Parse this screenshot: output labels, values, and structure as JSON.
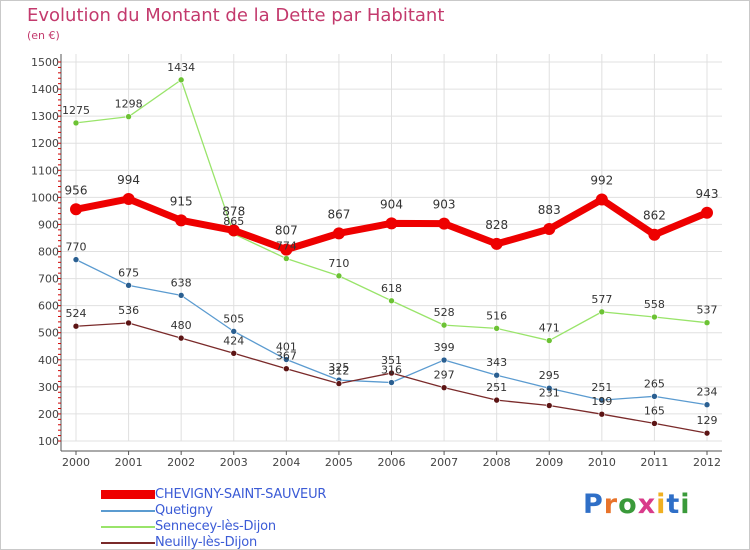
{
  "header": {
    "title": "Evolution du Montant de la Dette par Habitant",
    "unit": "(en €)"
  },
  "logo": {
    "text": "Proxiti",
    "letter_colors": [
      "#2f6fc7",
      "#e8732a",
      "#3a9a3a",
      "#d93b8a",
      "#f0b021",
      "#2f6fc7",
      "#3a9a3a"
    ]
  },
  "colors": {
    "grid": "#e0e0e0",
    "axis": "#555555",
    "tick_text": "#444444",
    "label_text": "#333333"
  },
  "chart_data": {
    "type": "line",
    "x": [
      "2000",
      "2001",
      "2002",
      "2003",
      "2004",
      "2005",
      "2006",
      "2007",
      "2008",
      "2009",
      "2010",
      "2011",
      "2012"
    ],
    "ylim": [
      100,
      1500
    ],
    "yticks": [
      100,
      200,
      300,
      400,
      500,
      600,
      700,
      800,
      900,
      1000,
      1100,
      1200,
      1300,
      1400,
      1500
    ],
    "grid": true,
    "legend_position": "bottom-left",
    "series": [
      {
        "name": "CHEVIGNY-SAINT-SAUVEUR",
        "color": "#ee0000",
        "marker_color": "#ee0000",
        "width": 7,
        "marker": 6,
        "values": [
          956,
          994,
          915,
          878,
          807,
          867,
          904,
          903,
          828,
          883,
          992,
          862,
          943
        ]
      },
      {
        "name": "Quetigny",
        "color": "#5b9bd0",
        "marker_color": "#2a5f91",
        "width": 1.3,
        "marker": 3,
        "values": [
          770,
          675,
          638,
          505,
          401,
          325,
          316,
          399,
          343,
          295,
          251,
          265,
          234
        ]
      },
      {
        "name": "Sennecey-lès-Dijon",
        "color": "#99e46a",
        "marker_color": "#6cc234",
        "width": 1.3,
        "marker": 3,
        "values": [
          1275,
          1298,
          1434,
          865,
          774,
          710,
          618,
          528,
          516,
          471,
          577,
          558,
          537
        ]
      },
      {
        "name": "Neuilly-lès-Dijon",
        "color": "#7a2a2a",
        "marker_color": "#5c1414",
        "width": 1.3,
        "marker": 3,
        "values": [
          524,
          536,
          480,
          424,
          367,
          312,
          351,
          297,
          251,
          231,
          199,
          165,
          129
        ]
      }
    ]
  }
}
